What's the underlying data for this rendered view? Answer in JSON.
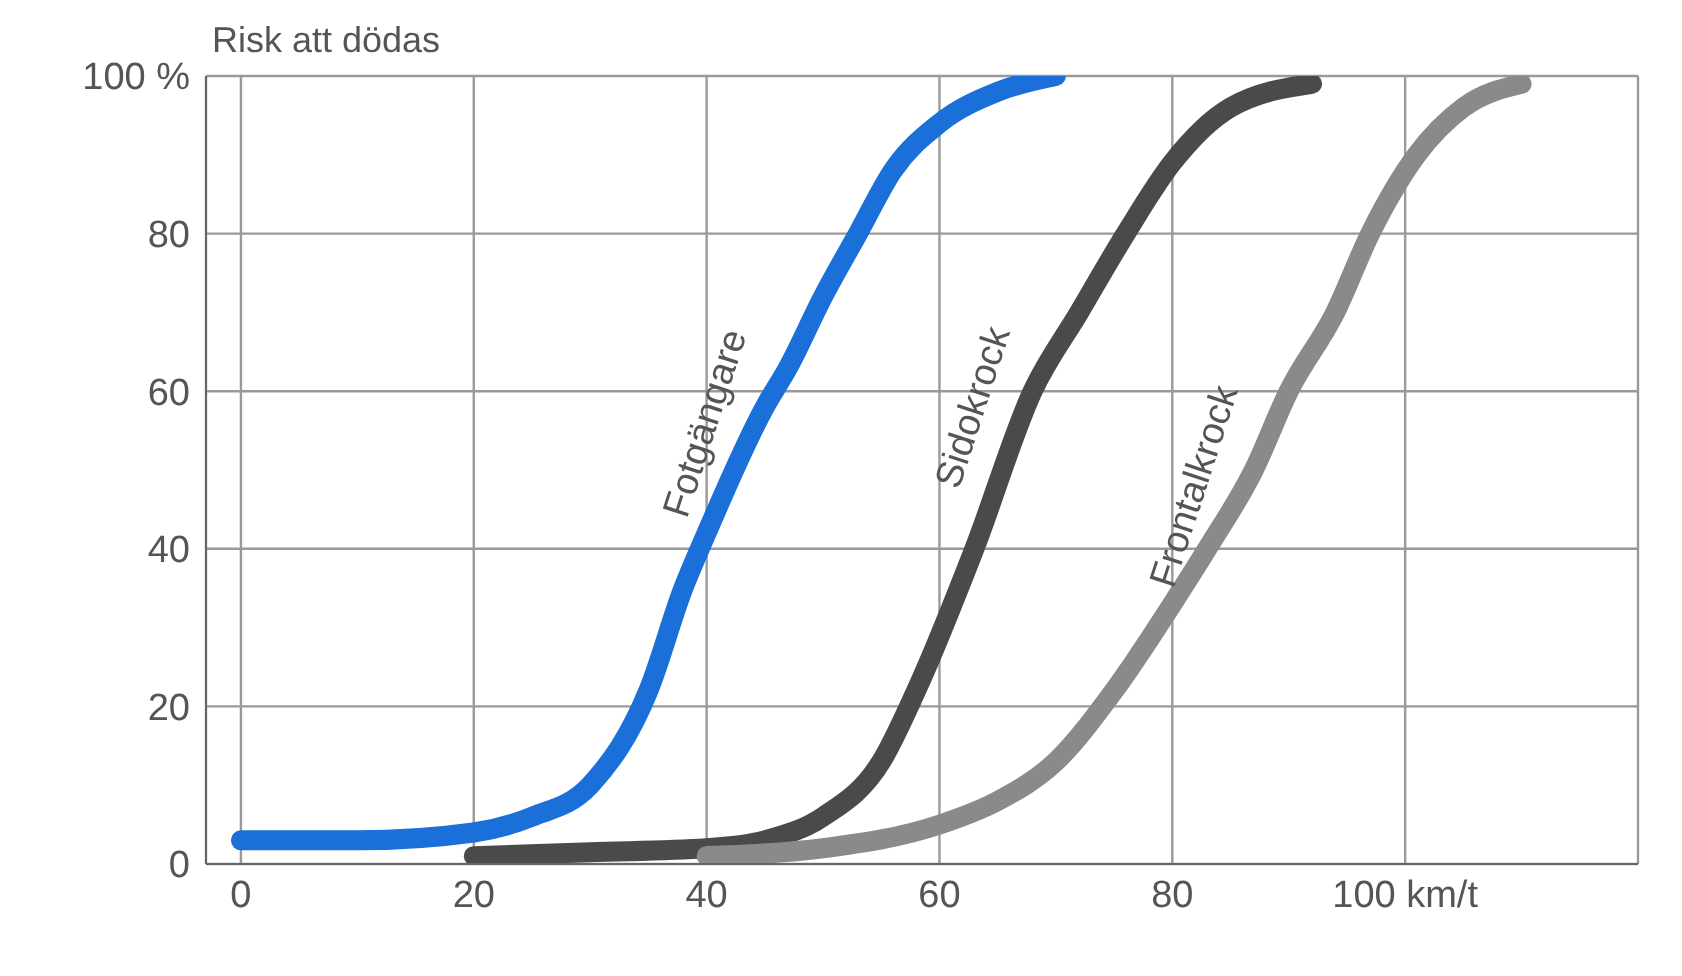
{
  "chart_data": {
    "type": "line",
    "ylabel": "Risk att dödas",
    "xlim": [
      -3,
      120
    ],
    "ylim": [
      0,
      100
    ],
    "xticks": [
      0,
      20,
      40,
      60,
      80,
      {
        "value": 100,
        "label": "100 km/t"
      },
      {
        "value": 120,
        "label": null
      }
    ],
    "yticks": [
      0,
      20,
      40,
      60,
      80,
      {
        "value": 100,
        "label": "100 %"
      }
    ],
    "grid": true,
    "marker": "none",
    "line_style": "solid",
    "series": [
      {
        "name": "Fotgängare",
        "color": "#1a6fd9",
        "x": [
          0,
          10,
          20,
          25,
          30,
          35,
          38,
          40,
          45,
          47,
          50,
          53,
          56,
          60,
          65,
          70
        ],
        "values": [
          3,
          3,
          4,
          6,
          10,
          22,
          35,
          42,
          58,
          63,
          72,
          80,
          88,
          94,
          98,
          100
        ]
      },
      {
        "name": "Sidokrock",
        "color": "#4a4a4a",
        "x": [
          20,
          30,
          40,
          45,
          50,
          55,
          58,
          63,
          68,
          72,
          76,
          80,
          85,
          92
        ],
        "values": [
          1,
          1.5,
          2,
          3,
          6,
          13,
          22,
          40,
          60,
          70,
          80,
          89,
          96,
          99
        ]
      },
      {
        "name": "Frontalkrock",
        "color": "#8a8a8a",
        "x": [
          40,
          50,
          60,
          65,
          70,
          75,
          80,
          83,
          87,
          90,
          94,
          97,
          101,
          105,
          110
        ],
        "values": [
          1,
          2,
          5,
          8,
          13,
          22,
          33,
          40,
          50,
          60,
          70,
          80,
          90,
          96,
          99
        ]
      }
    ]
  }
}
